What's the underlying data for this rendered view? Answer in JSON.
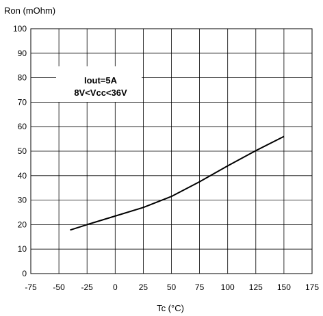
{
  "chart_data": {
    "type": "line",
    "title": "",
    "xlabel": "Tc (°C)",
    "ylabel": "Ron (mOhm)",
    "xlim": [
      -75,
      175
    ],
    "ylim": [
      0,
      100
    ],
    "xticks": [
      -75,
      -50,
      -25,
      0,
      25,
      50,
      75,
      100,
      125,
      150,
      175
    ],
    "yticks": [
      0,
      10,
      20,
      30,
      40,
      50,
      60,
      70,
      80,
      90,
      100
    ],
    "grid": true,
    "annotation": {
      "line1": "Iout=5A",
      "line2": "8V<Vcc<36V"
    },
    "series": [
      {
        "x": [
          -40,
          -25,
          0,
          25,
          50,
          75,
          100,
          125,
          150
        ],
        "y": [
          17.8,
          20.0,
          23.5,
          27.0,
          31.5,
          37.5,
          44.0,
          50.2,
          56.0
        ]
      }
    ],
    "colors": {
      "line": "#000000",
      "grid": "#000000",
      "background": "#ffffff"
    }
  }
}
